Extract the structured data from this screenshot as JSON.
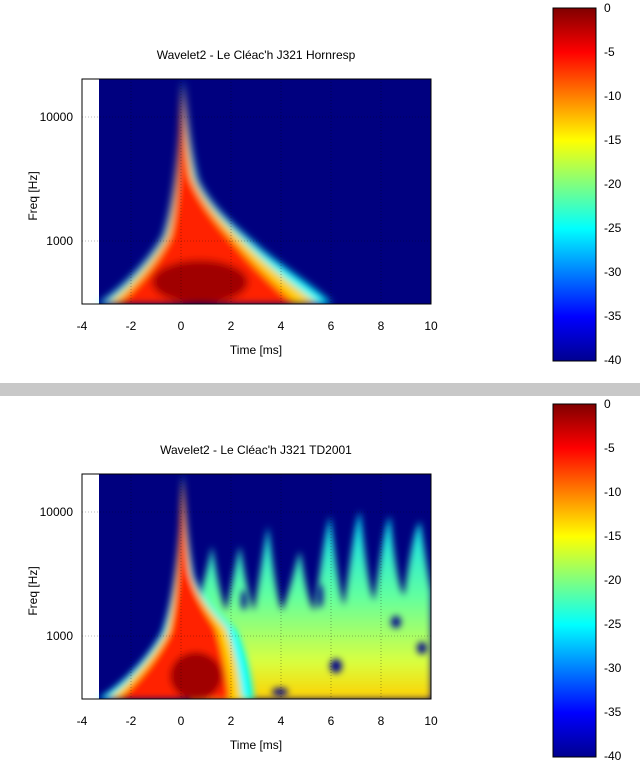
{
  "colormap": {
    "stops": [
      "#00008f",
      "#0000ff",
      "#00ffff",
      "#ffff00",
      "#ff0000",
      "#800000"
    ],
    "tick_labels": [
      "0",
      "-5",
      "-10",
      "-15",
      "-20",
      "-25",
      "-30",
      "-35",
      "-40"
    ],
    "range": [
      -40,
      0
    ]
  },
  "background_color": "#00007f",
  "chart_data": [
    {
      "type": "heatmap",
      "title": "Wavelet2 - Le Cléac'h J321 Hornresp",
      "xlabel": "Time [ms]",
      "ylabel": "Freq [Hz]",
      "xlim": [
        -4,
        10
      ],
      "ylim": [
        300,
        20000
      ],
      "y_scale": "log",
      "x_tick_labels": [
        "-4",
        "-2",
        "0",
        "2",
        "4",
        "6",
        "8",
        "10"
      ],
      "y_tick_labels": [
        "1000",
        "10000"
      ],
      "x_ticks": [
        -4,
        -2,
        0,
        2,
        4,
        6,
        8,
        10
      ],
      "y_ticks": [
        1000,
        10000
      ],
      "grid": true,
      "colorbar_range_db": [
        -40,
        0
      ],
      "decay_region": {
        "left_edge": [
          [
            300,
            -3.3
          ],
          [
            600,
            -1.2
          ],
          [
            1000,
            -0.6
          ],
          [
            2000,
            -0.25
          ],
          [
            5000,
            -0.07
          ],
          [
            10000,
            -0.03
          ],
          [
            20000,
            0
          ]
        ],
        "right_edge": [
          [
            300,
            6.0
          ],
          [
            500,
            5.0
          ],
          [
            800,
            3.6
          ],
          [
            1000,
            2.8
          ],
          [
            1500,
            2.2
          ],
          [
            2500,
            1.6
          ],
          [
            4000,
            1.0
          ],
          [
            6000,
            0.6
          ],
          [
            10000,
            0.35
          ],
          [
            20000,
            0.1
          ]
        ],
        "peak_time_ms": 0.3,
        "peak_db": -2
      }
    },
    {
      "type": "heatmap",
      "title": "Wavelet2 - Le Cléac'h J321 TD2001",
      "xlabel": "Time [ms]",
      "ylabel": "Freq [Hz]",
      "xlim": [
        -4,
        10
      ],
      "ylim": [
        300,
        20000
      ],
      "y_scale": "log",
      "x_tick_labels": [
        "-4",
        "-2",
        "0",
        "2",
        "4",
        "6",
        "8",
        "10"
      ],
      "y_tick_labels": [
        "1000",
        "10000"
      ],
      "x_ticks": [
        -4,
        -2,
        0,
        2,
        4,
        6,
        8,
        10
      ],
      "y_ticks": [
        1000,
        10000
      ],
      "grid": true,
      "colorbar_range_db": [
        -40,
        0
      ],
      "decay_region": {
        "left_edge": [
          [
            300,
            -3.3
          ],
          [
            600,
            -1.2
          ],
          [
            1000,
            -0.6
          ],
          [
            2000,
            -0.25
          ],
          [
            5000,
            -0.07
          ],
          [
            10000,
            -0.03
          ],
          [
            20000,
            0
          ]
        ],
        "right_edge": [
          [
            300,
            3.2
          ],
          [
            500,
            2.6
          ],
          [
            800,
            2.0
          ],
          [
            1000,
            1.6
          ],
          [
            2000,
            1.0
          ],
          [
            4000,
            0.6
          ],
          [
            10000,
            0.3
          ],
          [
            20000,
            0.1
          ]
        ],
        "peak_time_ms": 0.3,
        "peak_db": -2
      },
      "residual_floor_db": -18,
      "resonance_peaks_ms": [
        0.6,
        1.6,
        2.5,
        3.3,
        4.4,
        5.6,
        6.2,
        6.8,
        7.6,
        8.1,
        8.6,
        9.3,
        9.8
      ]
    }
  ]
}
